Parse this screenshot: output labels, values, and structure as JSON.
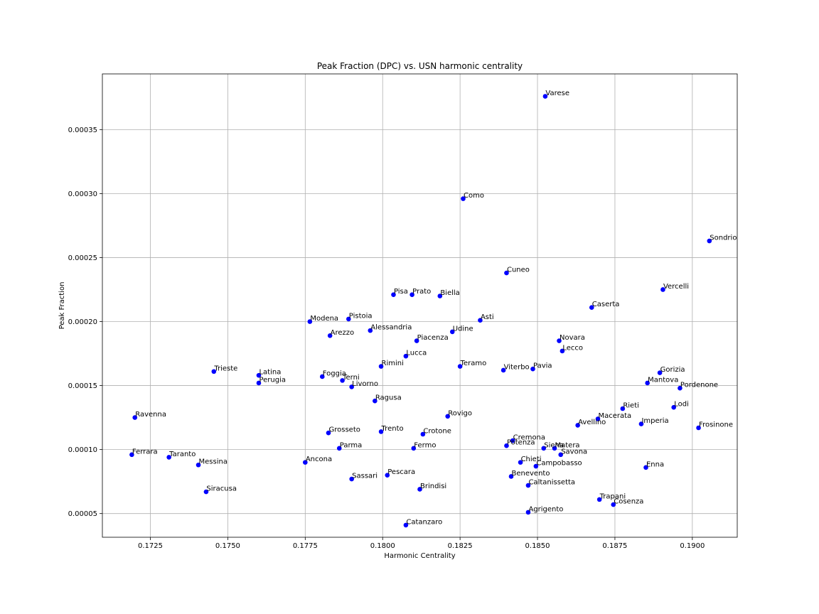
{
  "chart_data": {
    "type": "scatter",
    "title": "Peak Fraction (DPC) vs. USN harmonic centrality",
    "xlabel": "Harmonic Centrality",
    "ylabel": "Peak Fraction",
    "xlim": [
      0.17095,
      0.19145
    ],
    "ylim": [
      3.15e-05,
      0.0003935
    ],
    "xticks": [
      0.1725,
      0.175,
      0.1775,
      0.18,
      0.1825,
      0.185,
      0.1875,
      0.19
    ],
    "xtick_labels": [
      "0.1725",
      "0.1750",
      "0.1775",
      "0.1800",
      "0.1825",
      "0.1850",
      "0.1875",
      "0.1900"
    ],
    "yticks": [
      5e-05,
      0.0001,
      0.00015,
      0.0002,
      0.00025,
      0.0003,
      0.00035
    ],
    "ytick_labels": [
      "0.00005",
      "0.00010",
      "0.00015",
      "0.00020",
      "0.00025",
      "0.00030",
      "0.00035"
    ],
    "grid": true,
    "marker_color": "#0000ff",
    "points": [
      {
        "label": "Varese",
        "x": 0.18525,
        "y": 0.000376
      },
      {
        "label": "Como",
        "x": 0.1826,
        "y": 0.000296
      },
      {
        "label": "Sondrio",
        "x": 0.19055,
        "y": 0.000263
      },
      {
        "label": "Cuneo",
        "x": 0.184,
        "y": 0.000238
      },
      {
        "label": "Vercelli",
        "x": 0.18905,
        "y": 0.000225
      },
      {
        "label": "Pisa",
        "x": 0.18035,
        "y": 0.000221
      },
      {
        "label": "Prato",
        "x": 0.18095,
        "y": 0.000221
      },
      {
        "label": "Biella",
        "x": 0.18185,
        "y": 0.00022
      },
      {
        "label": "Caserta",
        "x": 0.18675,
        "y": 0.000211
      },
      {
        "label": "Pistoia",
        "x": 0.1789,
        "y": 0.000202
      },
      {
        "label": "Asti",
        "x": 0.18315,
        "y": 0.000201
      },
      {
        "label": "Modena",
        "x": 0.17765,
        "y": 0.0002
      },
      {
        "label": "Alessandria",
        "x": 0.1796,
        "y": 0.000193
      },
      {
        "label": "Udine",
        "x": 0.18225,
        "y": 0.000192
      },
      {
        "label": "Arezzo",
        "x": 0.1783,
        "y": 0.000189
      },
      {
        "label": "Piacenza",
        "x": 0.1811,
        "y": 0.000185
      },
      {
        "label": "Novara",
        "x": 0.1857,
        "y": 0.000185
      },
      {
        "label": "Lecco",
        "x": 0.1858,
        "y": 0.000177
      },
      {
        "label": "Lucca",
        "x": 0.18075,
        "y": 0.000173
      },
      {
        "label": "Rimini",
        "x": 0.17995,
        "y": 0.000165
      },
      {
        "label": "Teramo",
        "x": 0.1825,
        "y": 0.000165
      },
      {
        "label": "Viterbo",
        "x": 0.1839,
        "y": 0.000162
      },
      {
        "label": "Pavia",
        "x": 0.18485,
        "y": 0.000163
      },
      {
        "label": "Trieste",
        "x": 0.17455,
        "y": 0.000161
      },
      {
        "label": "Gorizia",
        "x": 0.18895,
        "y": 0.00016
      },
      {
        "label": "Latina",
        "x": 0.176,
        "y": 0.000158
      },
      {
        "label": "Foggia",
        "x": 0.17805,
        "y": 0.000157
      },
      {
        "label": "Terni",
        "x": 0.1787,
        "y": 0.000154
      },
      {
        "label": "Perugia",
        "x": 0.176,
        "y": 0.000152
      },
      {
        "label": "Mantova",
        "x": 0.18855,
        "y": 0.000152
      },
      {
        "label": "Livorno",
        "x": 0.179,
        "y": 0.000149
      },
      {
        "label": "Pordenone",
        "x": 0.1896,
        "y": 0.000148
      },
      {
        "label": "Ragusa",
        "x": 0.17975,
        "y": 0.000138
      },
      {
        "label": "Lodi",
        "x": 0.1894,
        "y": 0.000133
      },
      {
        "label": "Rieti",
        "x": 0.18775,
        "y": 0.000132
      },
      {
        "label": "Rovigo",
        "x": 0.1821,
        "y": 0.000126
      },
      {
        "label": "Ravenna",
        "x": 0.172,
        "y": 0.000125
      },
      {
        "label": "Macerata",
        "x": 0.18695,
        "y": 0.000124
      },
      {
        "label": "Avellino",
        "x": 0.1863,
        "y": 0.000119
      },
      {
        "label": "Imperia",
        "x": 0.18835,
        "y": 0.00012
      },
      {
        "label": "Frosinone",
        "x": 0.1902,
        "y": 0.000117
      },
      {
        "label": "Trento",
        "x": 0.17995,
        "y": 0.000114
      },
      {
        "label": "Grosseto",
        "x": 0.17825,
        "y": 0.000113
      },
      {
        "label": "Crotone",
        "x": 0.1813,
        "y": 0.000112
      },
      {
        "label": "Cremona",
        "x": 0.1842,
        "y": 0.000107
      },
      {
        "label": "Potenza",
        "x": 0.184,
        "y": 0.000103
      },
      {
        "label": "Parma",
        "x": 0.1786,
        "y": 0.000101
      },
      {
        "label": "Fermo",
        "x": 0.181,
        "y": 0.000101
      },
      {
        "label": "Siena",
        "x": 0.1852,
        "y": 0.000101
      },
      {
        "label": "Matera",
        "x": 0.18555,
        "y": 0.000101
      },
      {
        "label": "Savona",
        "x": 0.18575,
        "y": 9.6e-05
      },
      {
        "label": "Ferrara",
        "x": 0.1719,
        "y": 9.6e-05
      },
      {
        "label": "Taranto",
        "x": 0.1731,
        "y": 9.4e-05
      },
      {
        "label": "Ancona",
        "x": 0.1775,
        "y": 9e-05
      },
      {
        "label": "Chieti",
        "x": 0.18445,
        "y": 9e-05
      },
      {
        "label": "Messina",
        "x": 0.17405,
        "y": 8.8e-05
      },
      {
        "label": "Campobasso",
        "x": 0.18495,
        "y": 8.7e-05
      },
      {
        "label": "Enna",
        "x": 0.1885,
        "y": 8.6e-05
      },
      {
        "label": "Pescara",
        "x": 0.18015,
        "y": 8e-05
      },
      {
        "label": "Benevento",
        "x": 0.18415,
        "y": 7.9e-05
      },
      {
        "label": "Sassari",
        "x": 0.179,
        "y": 7.7e-05
      },
      {
        "label": "Caltanissetta",
        "x": 0.1847,
        "y": 7.2e-05
      },
      {
        "label": "Brindisi",
        "x": 0.1812,
        "y": 6.9e-05
      },
      {
        "label": "Siracusa",
        "x": 0.1743,
        "y": 6.7e-05
      },
      {
        "label": "Trapani",
        "x": 0.187,
        "y": 6.1e-05
      },
      {
        "label": "Cosenza",
        "x": 0.18745,
        "y": 5.7e-05
      },
      {
        "label": "Agrigento",
        "x": 0.1847,
        "y": 5.1e-05
      },
      {
        "label": "Catanzaro",
        "x": 0.18075,
        "y": 4.1e-05
      }
    ]
  }
}
